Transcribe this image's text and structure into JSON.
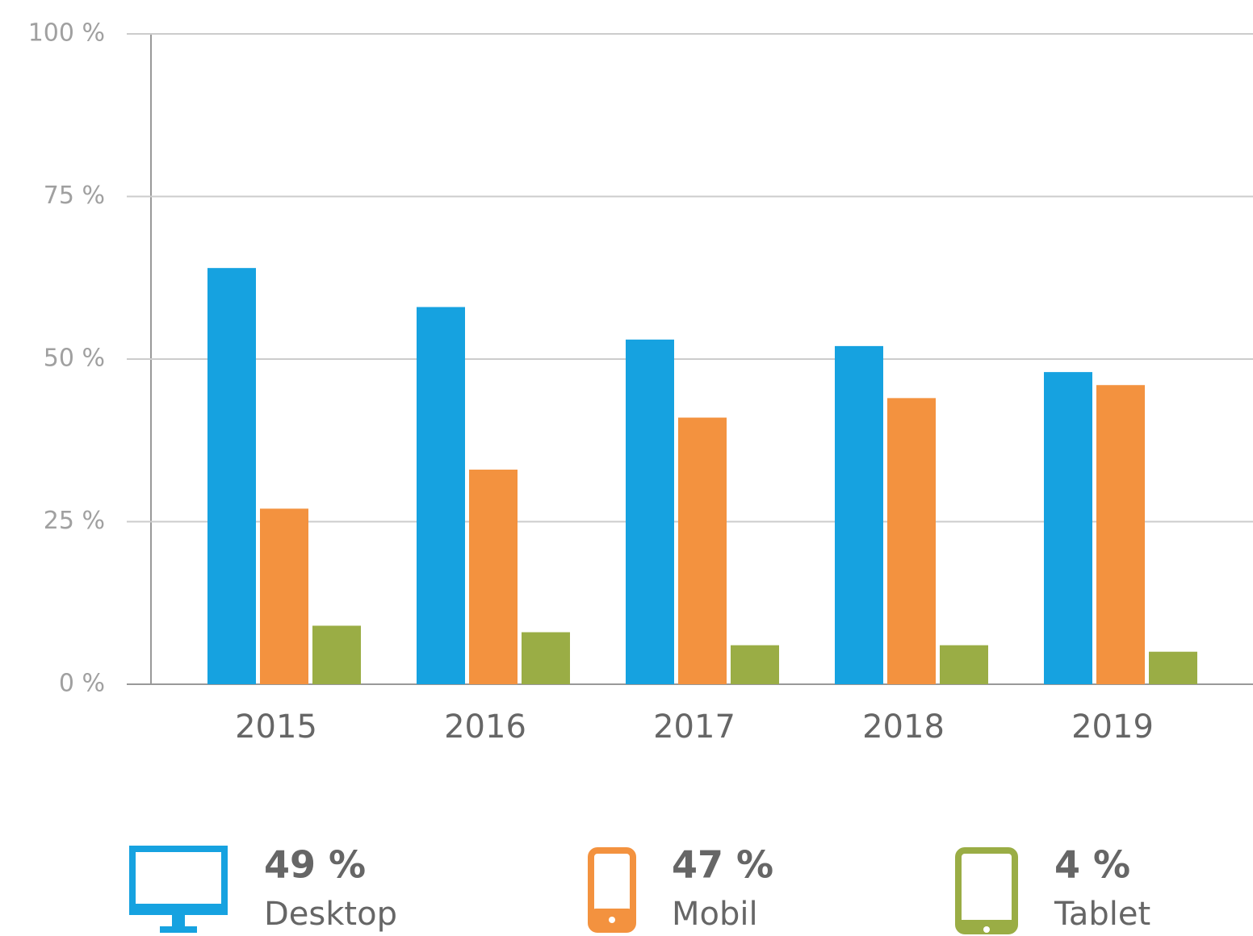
{
  "chart_data": {
    "type": "bar",
    "categories": [
      "2015",
      "2016",
      "2017",
      "2018",
      "2019"
    ],
    "series": [
      {
        "name": "Desktop",
        "color": "#16a2e0",
        "values": [
          64,
          58,
          53,
          52,
          48
        ],
        "share": "49 %"
      },
      {
        "name": "Mobil",
        "color": "#f3923f",
        "values": [
          27,
          33,
          41,
          44,
          46
        ],
        "share": "47 %"
      },
      {
        "name": "Tablet",
        "color": "#9aad45",
        "values": [
          9,
          8,
          6,
          6,
          5
        ],
        "share": "4 %"
      }
    ],
    "ylim": [
      0,
      100
    ],
    "yticks": [
      {
        "value": 0,
        "label": "0 %"
      },
      {
        "value": 25,
        "label": "25 %"
      },
      {
        "value": 50,
        "label": "50 %"
      },
      {
        "value": 75,
        "label": "75 %"
      },
      {
        "value": 100,
        "label": "100 %"
      }
    ],
    "grid": true
  }
}
